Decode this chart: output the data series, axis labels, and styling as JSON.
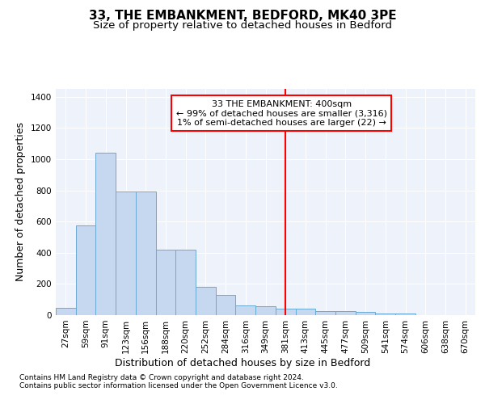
{
  "title": "33, THE EMBANKMENT, BEDFORD, MK40 3PE",
  "subtitle": "Size of property relative to detached houses in Bedford",
  "xlabel": "Distribution of detached houses by size in Bedford",
  "ylabel": "Number of detached properties",
  "footer_line1": "Contains HM Land Registry data © Crown copyright and database right 2024.",
  "footer_line2": "Contains public sector information licensed under the Open Government Licence v3.0.",
  "bar_labels": [
    "27sqm",
    "59sqm",
    "91sqm",
    "123sqm",
    "156sqm",
    "188sqm",
    "220sqm",
    "252sqm",
    "284sqm",
    "316sqm",
    "349sqm",
    "381sqm",
    "413sqm",
    "445sqm",
    "477sqm",
    "509sqm",
    "541sqm",
    "574sqm",
    "606sqm",
    "638sqm",
    "670sqm"
  ],
  "bar_values": [
    47,
    575,
    1040,
    790,
    790,
    420,
    420,
    180,
    130,
    60,
    55,
    43,
    43,
    27,
    27,
    20,
    10,
    10,
    0,
    0,
    0
  ],
  "bar_color": "#c5d8f0",
  "bar_edge_color": "#6aaad4",
  "annotation_line_index": 11,
  "annotation_line_color": "red",
  "annotation_box_text": "33 THE EMBANKMENT: 400sqm\n← 99% of detached houses are smaller (3,316)\n1% of semi-detached houses are larger (22) →",
  "ylim": [
    0,
    1450
  ],
  "yticks": [
    0,
    200,
    400,
    600,
    800,
    1000,
    1200,
    1400
  ],
  "background_color": "#eef2fb",
  "grid_color": "#ffffff",
  "title_fontsize": 11,
  "subtitle_fontsize": 9.5,
  "ylabel_fontsize": 9,
  "xlabel_fontsize": 9,
  "tick_fontsize": 7.5,
  "footer_fontsize": 6.5
}
